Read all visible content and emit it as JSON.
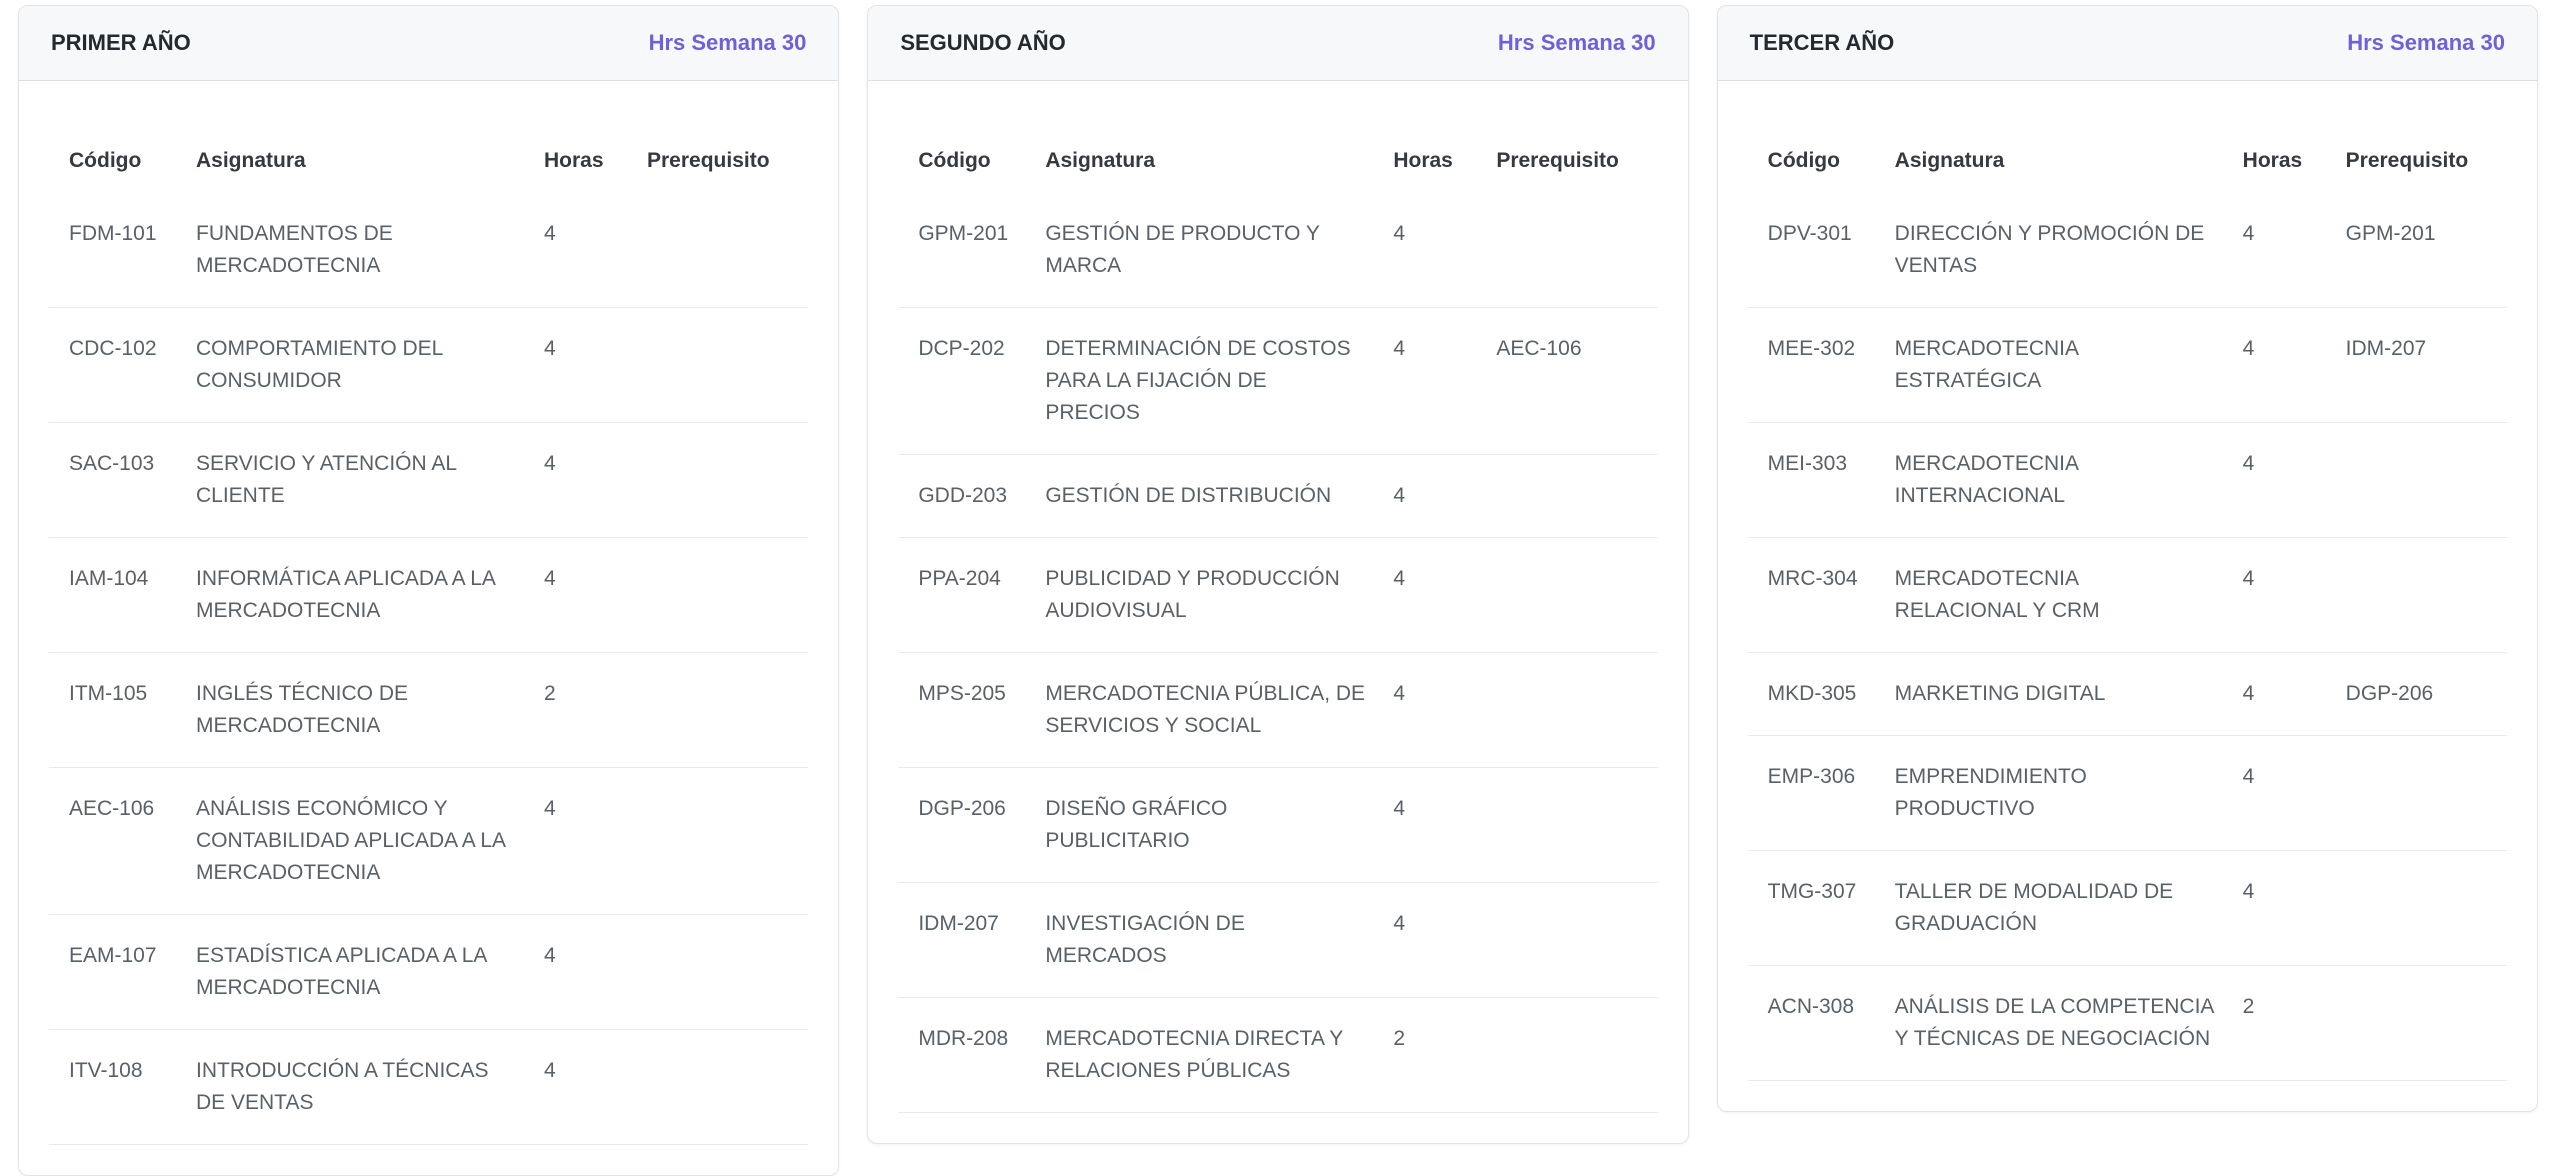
{
  "accent_color": "#6f5fd8",
  "table_columns": [
    "Código",
    "Asignatura",
    "Horas",
    "Prerequisito"
  ],
  "years": [
    {
      "title": "PRIMER AÑO",
      "hours_label": "Hrs Semana 30",
      "courses": [
        {
          "code": "FDM-101",
          "name": "FUNDAMENTOS DE MERCADOTECNIA",
          "hours": "4",
          "prereq": ""
        },
        {
          "code": "CDC-102",
          "name": "COMPORTAMIENTO DEL CONSUMIDOR",
          "hours": "4",
          "prereq": ""
        },
        {
          "code": "SAC-103",
          "name": "SERVICIO Y ATENCIÓN AL CLIENTE",
          "hours": "4",
          "prereq": ""
        },
        {
          "code": "IAM-104",
          "name": "INFORMÁTICA APLICADA A LA MERCADOTECNIA",
          "hours": "4",
          "prereq": ""
        },
        {
          "code": "ITM-105",
          "name": "INGLÉS TÉCNICO DE MERCADOTECNIA",
          "hours": "2",
          "prereq": ""
        },
        {
          "code": "AEC-106",
          "name": "ANÁLISIS ECONÓMICO Y CONTABILIDAD APLICADA A LA MERCADOTECNIA",
          "hours": "4",
          "prereq": ""
        },
        {
          "code": "EAM-107",
          "name": "ESTADÍSTICA APLICADA A LA MERCADOTECNIA",
          "hours": "4",
          "prereq": ""
        },
        {
          "code": "ITV-108",
          "name": "INTRODUCCIÓN A TÉCNICAS DE VENTAS",
          "hours": "4",
          "prereq": ""
        }
      ]
    },
    {
      "title": "SEGUNDO AÑO",
      "hours_label": "Hrs Semana 30",
      "courses": [
        {
          "code": "GPM-201",
          "name": "GESTIÓN DE PRODUCTO Y MARCA",
          "hours": "4",
          "prereq": ""
        },
        {
          "code": "DCP-202",
          "name": "DETERMINACIÓN DE COSTOS PARA LA FIJACIÓN DE PRECIOS",
          "hours": "4",
          "prereq": "AEC-106"
        },
        {
          "code": "GDD-203",
          "name": "GESTIÓN DE DISTRIBUCIÓN",
          "hours": "4",
          "prereq": ""
        },
        {
          "code": "PPA-204",
          "name": "PUBLICIDAD Y PRODUCCIÓN AUDIOVISUAL",
          "hours": "4",
          "prereq": ""
        },
        {
          "code": "MPS-205",
          "name": "MERCADOTECNIA PÚBLICA, DE SERVICIOS Y SOCIAL",
          "hours": "4",
          "prereq": ""
        },
        {
          "code": "DGP-206",
          "name": "DISEÑO GRÁFICO PUBLICITARIO",
          "hours": "4",
          "prereq": ""
        },
        {
          "code": "IDM-207",
          "name": "INVESTIGACIÓN DE MERCADOS",
          "hours": "4",
          "prereq": ""
        },
        {
          "code": "MDR-208",
          "name": "MERCADOTECNIA DIRECTA Y RELACIONES PÚBLICAS",
          "hours": "2",
          "prereq": ""
        }
      ]
    },
    {
      "title": "TERCER AÑO",
      "hours_label": "Hrs Semana 30",
      "courses": [
        {
          "code": "DPV-301",
          "name": "DIRECCIÓN Y PROMOCIÓN DE VENTAS",
          "hours": "4",
          "prereq": "GPM-201"
        },
        {
          "code": "MEE-302",
          "name": "MERCADOTECNIA ESTRATÉGICA",
          "hours": "4",
          "prereq": "IDM-207"
        },
        {
          "code": "MEI-303",
          "name": "MERCADOTECNIA INTERNACIONAL",
          "hours": "4",
          "prereq": ""
        },
        {
          "code": "MRC-304",
          "name": "MERCADOTECNIA RELACIONAL Y CRM",
          "hours": "4",
          "prereq": ""
        },
        {
          "code": "MKD-305",
          "name": "MARKETING DIGITAL",
          "hours": "4",
          "prereq": "DGP-206"
        },
        {
          "code": "EMP-306",
          "name": "EMPRENDIMIENTO PRODUCTIVO",
          "hours": "4",
          "prereq": ""
        },
        {
          "code": "TMG-307",
          "name": "TALLER DE MODALIDAD DE GRADUACIÓN",
          "hours": "4",
          "prereq": ""
        },
        {
          "code": "ACN-308",
          "name": "ANÁLISIS DE LA COMPETENCIA Y TÉCNICAS DE NEGOCIACIÓN",
          "hours": "2",
          "prereq": ""
        }
      ]
    }
  ]
}
